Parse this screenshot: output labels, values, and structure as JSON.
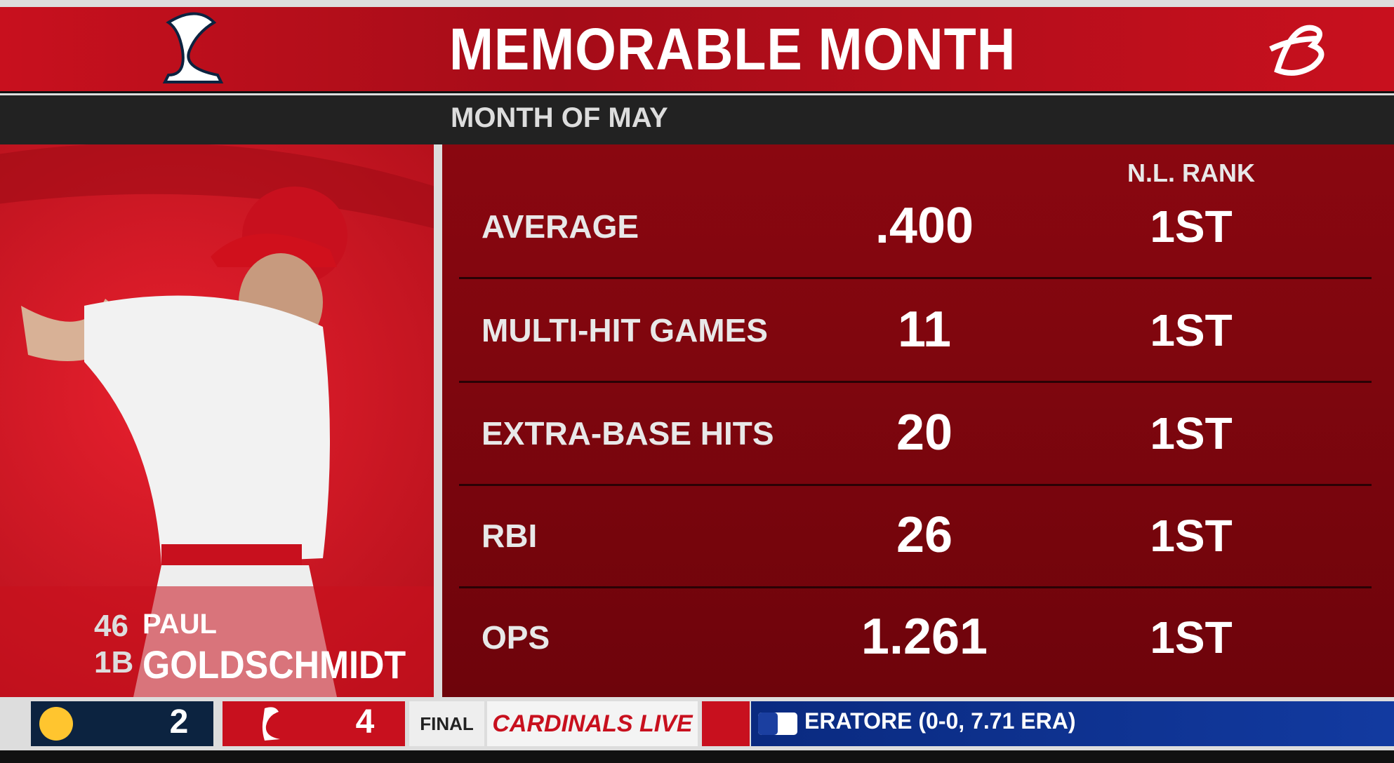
{
  "header": {
    "title": "MEMORABLE MONTH",
    "subtitle": "MONTH OF MAY"
  },
  "player": {
    "number": "46",
    "first_name": "PAUL",
    "position": "1B",
    "last_name": "GOLDSCHMIDT"
  },
  "table": {
    "rank_header": "N.L. RANK",
    "rows": [
      [
        "AVERAGE",
        ".400",
        "1ST"
      ],
      [
        "MULTI-HIT GAMES",
        "11",
        "1ST"
      ],
      [
        "EXTRA-BASE HITS",
        "20",
        "1ST"
      ],
      [
        "RBI",
        "26",
        "1ST"
      ],
      [
        "OPS",
        "1.261",
        "1ST"
      ]
    ]
  },
  "scorebug": {
    "away_score": 2,
    "home_score": 4,
    "status": "FINAL",
    "network": "CARDINALS LIVE",
    "ticker": "ERATORE (0-0, 7.71 ERA)"
  }
}
